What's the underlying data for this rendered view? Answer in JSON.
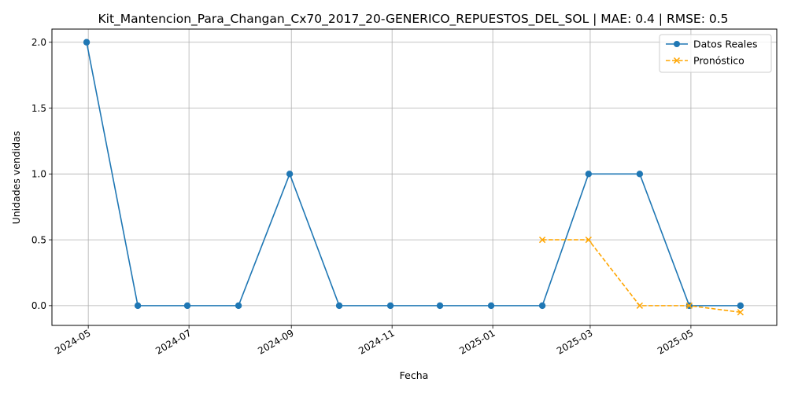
{
  "chart_data": {
    "type": "line",
    "title": "Kit_Mantencion_Para_Changan_Cx70_2017_20-GENERICO_REPUESTOS_DEL_SOL | MAE: 0.4 | RMSE: 0.5",
    "xlabel": "Fecha",
    "ylabel": "Unidades vendidas",
    "xlim": [
      "2024-04-09",
      "2025-06-22"
    ],
    "ylim": [
      -0.15,
      2.1
    ],
    "x_ticks": [
      "2024-05",
      "2024-07",
      "2024-09",
      "2024-11",
      "2025-01",
      "2025-03",
      "2025-05"
    ],
    "y_ticks": [
      "0.0",
      "0.5",
      "1.0",
      "1.5",
      "2.0"
    ],
    "y_tick_values": [
      0,
      0.5,
      1.0,
      1.5,
      2.0
    ],
    "grid": true,
    "legend_position": "top-right",
    "series": [
      {
        "name": "Datos Reales",
        "color": "#1f77b4",
        "style": "solid",
        "marker": "circle",
        "x": [
          "2024-04-30",
          "2024-05-31",
          "2024-06-30",
          "2024-07-31",
          "2024-08-31",
          "2024-09-30",
          "2024-10-31",
          "2024-11-30",
          "2024-12-31",
          "2025-01-31",
          "2025-02-28",
          "2025-03-31",
          "2025-04-30",
          "2025-05-31"
        ],
        "values": [
          2,
          0,
          0,
          0,
          1,
          0,
          0,
          0,
          0,
          0,
          1,
          1,
          0,
          0
        ]
      },
      {
        "name": "Pronóstico",
        "color": "#ffa500",
        "style": "dashed",
        "marker": "x",
        "x": [
          "2025-01-31",
          "2025-02-28",
          "2025-03-31",
          "2025-04-30",
          "2025-05-31"
        ],
        "values": [
          0.5,
          0.5,
          0.0,
          0.0,
          -0.05
        ]
      }
    ]
  }
}
